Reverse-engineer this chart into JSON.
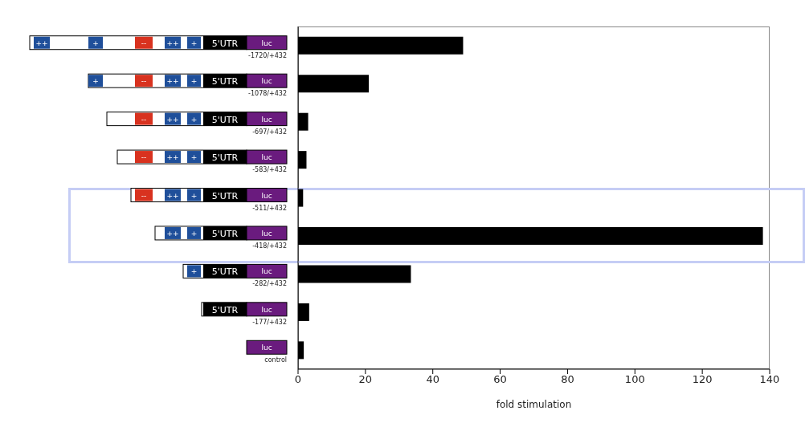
{
  "chart_data": {
    "type": "bar",
    "orientation": "horizontal",
    "categories": [
      "-1720/+432",
      "-1078/+432",
      "-697/+432",
      "-583/+432",
      "-511/+432",
      "-418/+432",
      "-282/+432",
      "-177/+432",
      "control"
    ],
    "values": [
      49,
      21,
      3,
      2.5,
      1.5,
      138,
      33.5,
      3.3,
      1.7
    ],
    "color": "#000000",
    "xlim": [
      0,
      140
    ],
    "xticks": [
      0,
      20,
      40,
      60,
      80,
      100,
      120,
      140
    ],
    "xlabel": "fold stimulation",
    "annotations": [
      "5'UTR",
      "luc",
      "++",
      "+",
      "--"
    ]
  }
}
